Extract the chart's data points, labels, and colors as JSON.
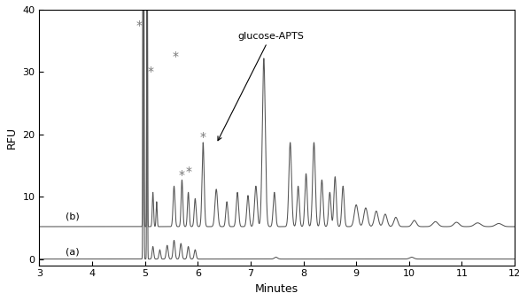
{
  "xlim": [
    3,
    12
  ],
  "ylim": [
    -1,
    40
  ],
  "xlabel": "Minutes",
  "ylabel": "RFU",
  "yticks": [
    0,
    10,
    20,
    30,
    40
  ],
  "xticks": [
    3,
    4,
    5,
    6,
    7,
    8,
    9,
    10,
    11,
    12
  ],
  "line_color": "#555555",
  "background_color": "#ffffff",
  "label_a": "(a)",
  "label_b": "(b)",
  "annotation_text": "glucose-APTS",
  "star_color": "#777777",
  "star_positions_b": [
    [
      4.88,
      37.5
    ],
    [
      5.1,
      30.0
    ],
    [
      5.57,
      32.5
    ],
    [
      5.7,
      13.5
    ],
    [
      5.82,
      14.0
    ],
    [
      6.1,
      19.5
    ]
  ]
}
